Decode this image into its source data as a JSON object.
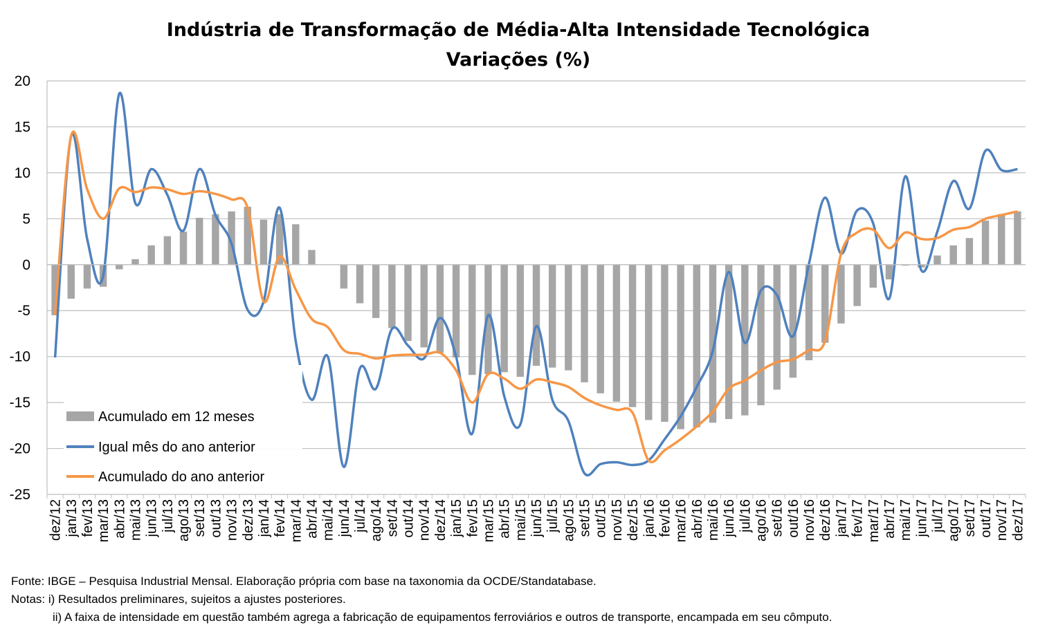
{
  "chart_data": {
    "type": "bar+line",
    "title": "Indústria de Transformação de Média-Alta Intensidade Tecnológica",
    "subtitle": "Variações (%)",
    "ylim": [
      -25,
      20
    ],
    "yticks": [
      "20",
      "15",
      "10",
      "5",
      "0",
      "-5",
      "-10",
      "-15",
      "-20",
      "-25"
    ],
    "ytick_values": [
      20,
      15,
      10,
      5,
      0,
      -5,
      -10,
      -15,
      -20,
      -25
    ],
    "grid": true,
    "legend_position": "bottom-left",
    "categories": [
      "dez/12",
      "jan/13",
      "fev/13",
      "mar/13",
      "abr/13",
      "mai/13",
      "jun/13",
      "jul/13",
      "ago/13",
      "set/13",
      "out/13",
      "nov/13",
      "dez/13",
      "jan/14",
      "fev/14",
      "mar/14",
      "abr/14",
      "mai/14",
      "jun/14",
      "jul/14",
      "ago/14",
      "set/14",
      "out/14",
      "nov/14",
      "dez/14",
      "jan/15",
      "fev/15",
      "mar/15",
      "abr/15",
      "mai/15",
      "jun/15",
      "jul/15",
      "ago/15",
      "set/15",
      "out/15",
      "nov/15",
      "dez/15",
      "jan/16",
      "fev/16",
      "mar/16",
      "abr/16",
      "mai/16",
      "jun/16",
      "jul/16",
      "ago/16",
      "set/16",
      "out/16",
      "nov/16",
      "dez/16",
      "jan/17",
      "fev/17",
      "mar/17",
      "abr/17",
      "mai/17",
      "jun/17",
      "jul/17",
      "ago/17",
      "set/17",
      "out/17",
      "nov/17",
      "dez/17"
    ],
    "series": [
      {
        "name": "Acumulado em 12 meses",
        "kind": "bar",
        "color": "#a6a6a6",
        "values": [
          -5.5,
          -3.7,
          -2.6,
          -2.4,
          -0.5,
          0.6,
          2.1,
          3.1,
          3.6,
          5.1,
          5.5,
          5.8,
          6.3,
          4.9,
          5.5,
          4.4,
          1.6,
          0.0,
          -2.6,
          -4.2,
          -5.8,
          -6.9,
          -8.3,
          -9.0,
          -9.6,
          -10.1,
          -12.0,
          -11.9,
          -11.7,
          -12.2,
          -11.0,
          -11.2,
          -11.5,
          -12.8,
          -14.0,
          -14.9,
          -15.5,
          -16.9,
          -17.1,
          -17.9,
          -17.7,
          -17.2,
          -16.8,
          -16.4,
          -15.3,
          -13.6,
          -12.3,
          -10.4,
          -8.5,
          -6.4,
          -4.5,
          -2.5,
          -1.6,
          -0.1,
          -0.3,
          1.0,
          2.1,
          2.9,
          4.8,
          5.5,
          5.8
        ]
      },
      {
        "name": "Igual mês do ano anterior",
        "kind": "line",
        "color": "#4f81bd",
        "values": [
          -10.1,
          14.0,
          2.8,
          -1.2,
          18.6,
          6.7,
          10.4,
          7.6,
          3.7,
          10.4,
          5.4,
          2.3,
          -4.9,
          -4.0,
          6.2,
          -8.3,
          -14.7,
          -10.0,
          -22.0,
          -11.3,
          -13.5,
          -7.0,
          -8.8,
          -10.2,
          -5.8,
          -10.0,
          -18.4,
          -5.5,
          -14.3,
          -17.4,
          -6.7,
          -14.7,
          -17.0,
          -22.7,
          -21.7,
          -21.5,
          -21.8,
          -21.3,
          -19.0,
          -16.5,
          -13.3,
          -9.4,
          -0.8,
          -8.5,
          -2.8,
          -3.3,
          -7.8,
          0.1,
          7.3,
          1.2,
          5.9,
          4.5,
          -3.7,
          9.6,
          -0.6,
          3.6,
          9.1,
          6.1,
          12.4,
          10.3,
          10.4
        ]
      },
      {
        "name": "Acumulado do ano anterior",
        "kind": "line",
        "color": "#f79646",
        "values": [
          -5.5,
          14.0,
          8.2,
          5.0,
          8.3,
          7.9,
          8.4,
          8.2,
          7.7,
          8.0,
          7.7,
          7.1,
          6.2,
          -4.0,
          0.9,
          -2.7,
          -5.9,
          -6.8,
          -9.3,
          -9.7,
          -10.2,
          -9.9,
          -9.8,
          -9.8,
          -9.6,
          -11.5,
          -15.0,
          -11.9,
          -12.4,
          -13.5,
          -12.5,
          -12.8,
          -13.3,
          -14.5,
          -15.3,
          -15.8,
          -16.1,
          -21.3,
          -20.2,
          -19.0,
          -17.6,
          -16.0,
          -13.5,
          -12.6,
          -11.5,
          -10.6,
          -10.3,
          -9.3,
          -8.3,
          1.2,
          3.5,
          3.8,
          1.8,
          3.5,
          2.8,
          2.9,
          3.8,
          4.1,
          5.0,
          5.4,
          5.8
        ]
      }
    ]
  },
  "notes": {
    "source": "Fonte: IBGE – Pesquisa Industrial Mensal. Elaboração própria com base na taxonomia da OCDE/Standatabase.",
    "note1": "Notas: i) Resultados preliminares, sujeitos a ajustes posteriores.",
    "note2": "ii) A faixa de intensidade em questão também agrega a fabricação de equipamentos ferroviários e outros de transporte, encampada em seu cômputo."
  }
}
